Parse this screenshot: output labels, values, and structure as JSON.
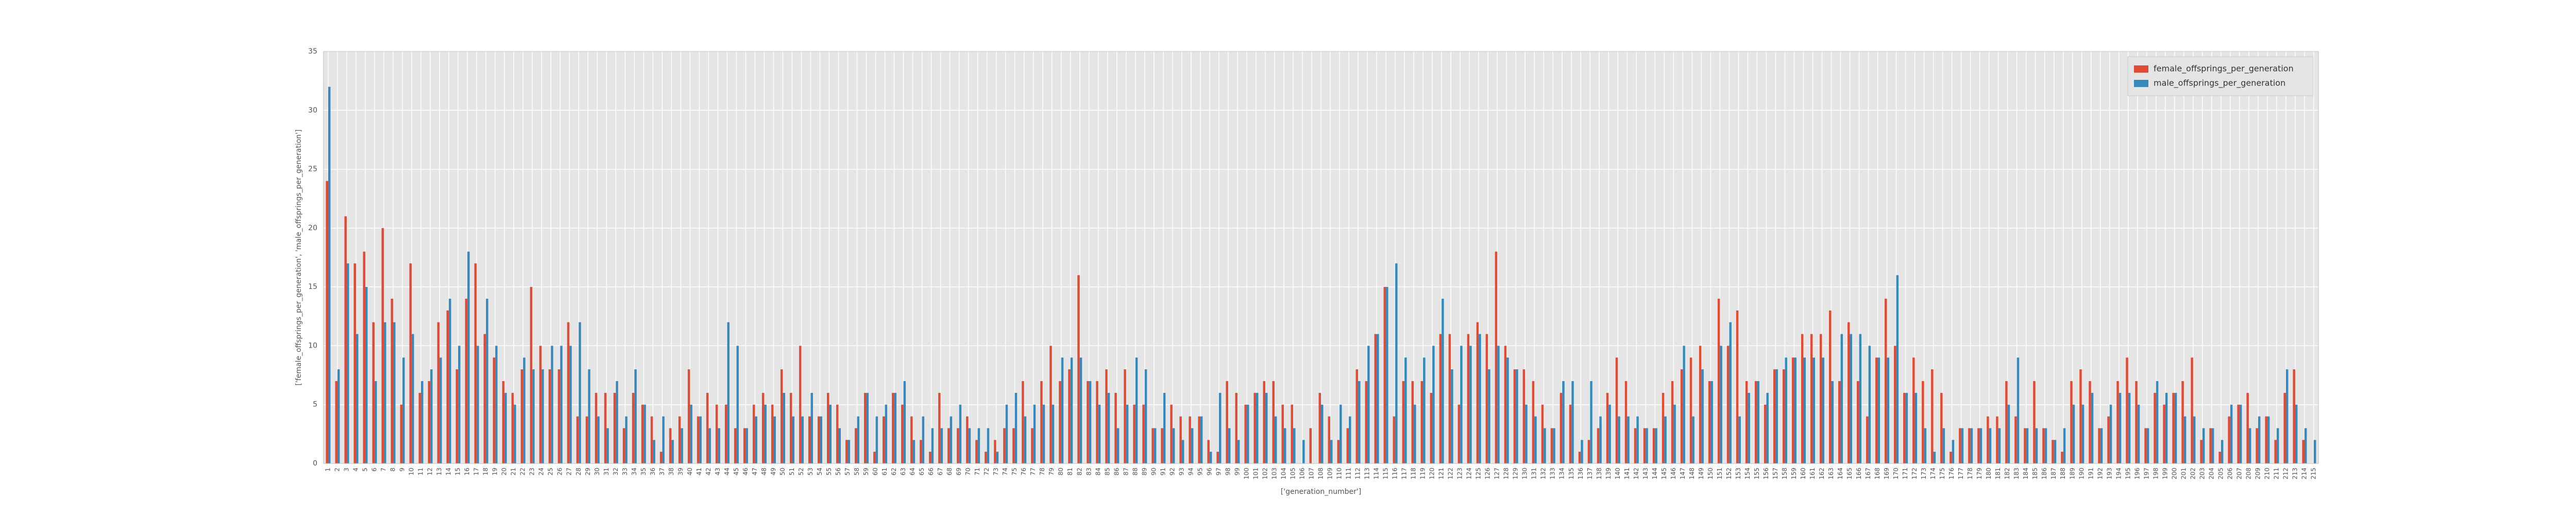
{
  "chart_data": {
    "type": "bar",
    "xlabel": "['generation_number']",
    "ylabel": "['female_offsprings_per_generation', 'male_offsprings_per_generation']",
    "categories": [
      1,
      2,
      3,
      4,
      5,
      6,
      7,
      8,
      9,
      10,
      11,
      12,
      13,
      14,
      15,
      16,
      17,
      18,
      19,
      20,
      21,
      22,
      23,
      24,
      25,
      26,
      27,
      28,
      29,
      30,
      31,
      32,
      33,
      34,
      35,
      36,
      37,
      38,
      39,
      40,
      41,
      42,
      43,
      44,
      45,
      46,
      47,
      48,
      49,
      50,
      51,
      52,
      53,
      54,
      55,
      56,
      57,
      58,
      59,
      60,
      61,
      62,
      63,
      64,
      65,
      66,
      67,
      68,
      69,
      70,
      71,
      72,
      73,
      74,
      75,
      76,
      77,
      78,
      79,
      80,
      81,
      82,
      83,
      84,
      85,
      86,
      87,
      88,
      89,
      90,
      91,
      92,
      93,
      94,
      95,
      96,
      97,
      98,
      99,
      100,
      101,
      102,
      103,
      104,
      105,
      106,
      107,
      108,
      109,
      110,
      111,
      112,
      113,
      114,
      115,
      116,
      117,
      118,
      119,
      120,
      121,
      122,
      123,
      124,
      125,
      126,
      127,
      128,
      129,
      130,
      131,
      132,
      133,
      134,
      135,
      136,
      137,
      138,
      139,
      140,
      141,
      142,
      143,
      144,
      145,
      146,
      147,
      148,
      149,
      150,
      151,
      152,
      153,
      154,
      155,
      156,
      157,
      158,
      159,
      160,
      161,
      162,
      163,
      164,
      165,
      166,
      167,
      168,
      169,
      170,
      171,
      172,
      173,
      174,
      175,
      176,
      177,
      178,
      179,
      180,
      181,
      182,
      183,
      184,
      185,
      186,
      187,
      188,
      189,
      190,
      191,
      192,
      193,
      194,
      195,
      196,
      197,
      198,
      199,
      200,
      201,
      202,
      203,
      204,
      205,
      206,
      207,
      208,
      209,
      210,
      211,
      212,
      213,
      214,
      215
    ],
    "series": [
      {
        "name": "female_offsprings_per_generation",
        "color": "#e24a33",
        "values": [
          24,
          7,
          21,
          17,
          18,
          12,
          20,
          14,
          5,
          17,
          6,
          7,
          12,
          13,
          8,
          14,
          17,
          11,
          9,
          7,
          6,
          8,
          15,
          10,
          8,
          8,
          12,
          4,
          4,
          6,
          6,
          6,
          3,
          6,
          5,
          4,
          1,
          3,
          4,
          8,
          4,
          6,
          5,
          5,
          3,
          3,
          5,
          6,
          5,
          8,
          6,
          10,
          4,
          4,
          6,
          5,
          2,
          3,
          6,
          1,
          4,
          6,
          5,
          4,
          2,
          1,
          6,
          3,
          3,
          4,
          2,
          1,
          2,
          3,
          3,
          7,
          3,
          7,
          10,
          7,
          8,
          16,
          7,
          7,
          8,
          6,
          8,
          5,
          5,
          3,
          3,
          5,
          4,
          4,
          4,
          2,
          1,
          7,
          6,
          5,
          6,
          7,
          7,
          5,
          5,
          0,
          3,
          6,
          4,
          2,
          3,
          8,
          7,
          11,
          15,
          4,
          7,
          7,
          7,
          6,
          11,
          11,
          5,
          11,
          12,
          11,
          18,
          10,
          8,
          8,
          7,
          5,
          3,
          6,
          5,
          1,
          2,
          3,
          6,
          9,
          7,
          3,
          3,
          3,
          6,
          7,
          8,
          9,
          10,
          7,
          14,
          10,
          13,
          7,
          7,
          5,
          8,
          8,
          9,
          11,
          11,
          11,
          13,
          7,
          12,
          7,
          4,
          9,
          14,
          10,
          6,
          9,
          7,
          8,
          6,
          1,
          3,
          3,
          3,
          4,
          4,
          7,
          4,
          3,
          7,
          3,
          2,
          1,
          7,
          8,
          7,
          3,
          4,
          7,
          9,
          7,
          3,
          6,
          5,
          6,
          7,
          9,
          2,
          3,
          1,
          4,
          5,
          6,
          3,
          4,
          2,
          6,
          8,
          2,
          0
        ]
      },
      {
        "name": "male_offsprings_per_generation",
        "color": "#348abd",
        "values": [
          32,
          8,
          17,
          11,
          15,
          7,
          12,
          12,
          9,
          11,
          7,
          8,
          9,
          14,
          10,
          18,
          10,
          14,
          10,
          6,
          5,
          9,
          8,
          8,
          10,
          10,
          10,
          12,
          8,
          4,
          3,
          7,
          4,
          8,
          5,
          2,
          4,
          2,
          3,
          5,
          4,
          3,
          3,
          12,
          10,
          3,
          4,
          5,
          4,
          6,
          4,
          4,
          6,
          4,
          5,
          3,
          2,
          4,
          6,
          4,
          5,
          6,
          7,
          2,
          4,
          3,
          3,
          4,
          5,
          3,
          3,
          3,
          1,
          5,
          6,
          4,
          5,
          5,
          5,
          9,
          9,
          9,
          7,
          5,
          6,
          3,
          5,
          9,
          8,
          3,
          6,
          3,
          2,
          3,
          4,
          1,
          6,
          3,
          2,
          5,
          6,
          6,
          4,
          3,
          3,
          2,
          0,
          5,
          2,
          5,
          4,
          7,
          10,
          11,
          15,
          17,
          9,
          5,
          9,
          10,
          14,
          8,
          10,
          10,
          11,
          8,
          10,
          9,
          8,
          5,
          4,
          3,
          3,
          7,
          7,
          2,
          7,
          4,
          5,
          4,
          4,
          4,
          3,
          3,
          4,
          5,
          10,
          4,
          8,
          7,
          10,
          12,
          4,
          6,
          7,
          6,
          8,
          9,
          9,
          9,
          9,
          9,
          7,
          11,
          11,
          11,
          10,
          9,
          9,
          16,
          6,
          6,
          3,
          1,
          3,
          2,
          3,
          3,
          3,
          3,
          3,
          5,
          9,
          3,
          3,
          3,
          2,
          3,
          5,
          5,
          6,
          3,
          5,
          6,
          6,
          5,
          3,
          7,
          6,
          6,
          4,
          4,
          3,
          3,
          2,
          5,
          5,
          3,
          4,
          4,
          3,
          8,
          5,
          3,
          2
        ]
      }
    ],
    "ylim": [
      0,
      35
    ],
    "yticks": [
      0,
      5,
      10,
      15,
      20,
      25,
      30,
      35
    ],
    "grid": true,
    "legend": "upper right"
  }
}
